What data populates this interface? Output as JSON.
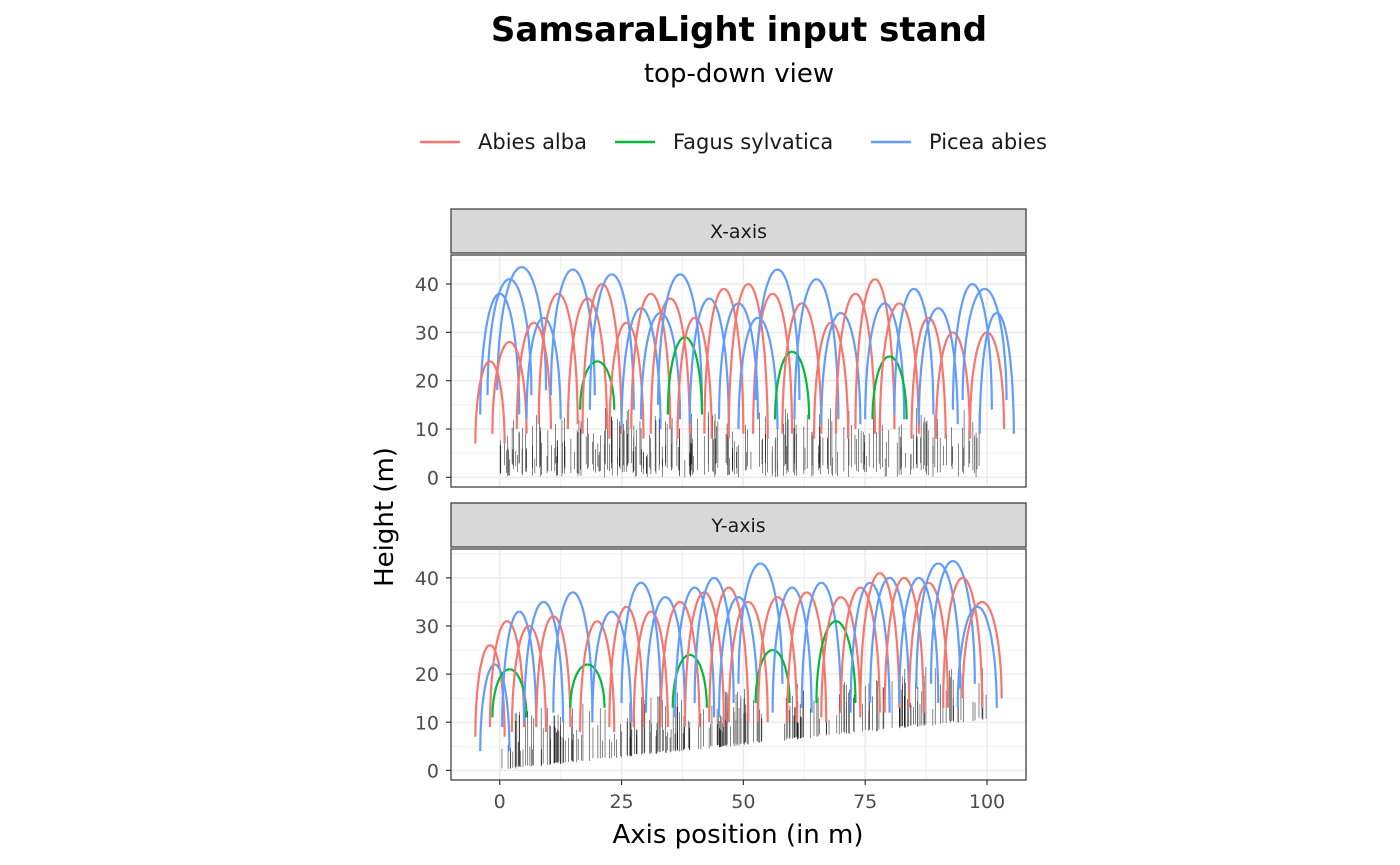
{
  "chart_data": {
    "type": "line",
    "title": "SamsaraLight input stand",
    "subtitle": "top-down view",
    "xlabel": "Axis position (in m)",
    "ylabel": "Height (m)",
    "xlim": [
      -10,
      108
    ],
    "ylim": [
      -2,
      46
    ],
    "x_ticks": [
      0,
      25,
      50,
      75,
      100
    ],
    "y_ticks": [
      0,
      10,
      20,
      30,
      40
    ],
    "grid": true,
    "legend_position": "top",
    "legend": [
      {
        "name": "Abies alba",
        "color": "#F8766D"
      },
      {
        "name": "Fagus sylvatica",
        "color": "#00BA38"
      },
      {
        "name": "Picea abies",
        "color": "#619CFF"
      }
    ],
    "panels": [
      {
        "strip": "X-axis",
        "trees": [
          {
            "species": "Picea abies",
            "x": 2,
            "base": 17,
            "height": 41,
            "radius": 4.5
          },
          {
            "species": "Picea abies",
            "x": 4.5,
            "base": 18,
            "height": 43.5,
            "radius": 5
          },
          {
            "species": "Picea abies",
            "x": 0,
            "base": 13,
            "height": 38,
            "radius": 4
          },
          {
            "species": "Abies alba",
            "x": -2,
            "base": 7,
            "height": 24,
            "radius": 3
          },
          {
            "species": "Abies alba",
            "x": 2,
            "base": 9,
            "height": 28,
            "radius": 3.5
          },
          {
            "species": "Abies alba",
            "x": 7,
            "base": 10,
            "height": 32,
            "radius": 3.5
          },
          {
            "species": "Picea abies",
            "x": 9,
            "base": 12,
            "height": 33,
            "radius": 3.5
          },
          {
            "species": "Abies alba",
            "x": 12,
            "base": 11,
            "height": 38,
            "radius": 4
          },
          {
            "species": "Picea abies",
            "x": 15,
            "base": 17,
            "height": 43,
            "radius": 4.5
          },
          {
            "species": "Abies alba",
            "x": 18,
            "base": 10,
            "height": 37,
            "radius": 4
          },
          {
            "species": "Fagus sylvatica",
            "x": 20,
            "base": 14,
            "height": 24,
            "radius": 3.5
          },
          {
            "species": "Abies alba",
            "x": 21,
            "base": 9,
            "height": 40,
            "radius": 4
          },
          {
            "species": "Picea abies",
            "x": 23,
            "base": 14,
            "height": 42,
            "radius": 4.5
          },
          {
            "species": "Abies alba",
            "x": 26,
            "base": 8,
            "height": 32,
            "radius": 3.5
          },
          {
            "species": "Picea abies",
            "x": 29,
            "base": 10,
            "height": 35,
            "radius": 4
          },
          {
            "species": "Abies alba",
            "x": 31,
            "base": 10,
            "height": 38,
            "radius": 4
          },
          {
            "species": "Picea abies",
            "x": 33,
            "base": 12,
            "height": 34,
            "radius": 4
          },
          {
            "species": "Abies alba",
            "x": 35,
            "base": 9,
            "height": 37,
            "radius": 4
          },
          {
            "species": "Picea abies",
            "x": 37,
            "base": 15,
            "height": 42,
            "radius": 4.5
          },
          {
            "species": "Fagus sylvatica",
            "x": 38,
            "base": 13,
            "height": 29,
            "radius": 3.5
          },
          {
            "species": "Abies alba",
            "x": 40,
            "base": 8,
            "height": 33,
            "radius": 3.5
          },
          {
            "species": "Picea abies",
            "x": 43,
            "base": 11,
            "height": 37,
            "radius": 4
          },
          {
            "species": "Abies alba",
            "x": 46,
            "base": 9,
            "height": 39,
            "radius": 4
          },
          {
            "species": "Picea abies",
            "x": 49,
            "base": 12,
            "height": 36,
            "radius": 4
          },
          {
            "species": "Abies alba",
            "x": 51,
            "base": 8,
            "height": 40,
            "radius": 4
          },
          {
            "species": "Picea abies",
            "x": 53,
            "base": 10,
            "height": 33,
            "radius": 4
          },
          {
            "species": "Abies alba",
            "x": 56,
            "base": 9,
            "height": 38,
            "radius": 4
          },
          {
            "species": "Picea abies",
            "x": 57,
            "base": 16,
            "height": 43,
            "radius": 4.5
          },
          {
            "species": "Fagus sylvatica",
            "x": 60,
            "base": 12,
            "height": 26,
            "radius": 3.5
          },
          {
            "species": "Abies alba",
            "x": 62,
            "base": 9,
            "height": 36,
            "radius": 4
          },
          {
            "species": "Picea abies",
            "x": 65,
            "base": 12,
            "height": 41,
            "radius": 4.5
          },
          {
            "species": "Abies alba",
            "x": 68,
            "base": 8,
            "height": 32,
            "radius": 3.5
          },
          {
            "species": "Picea abies",
            "x": 70,
            "base": 11,
            "height": 34,
            "radius": 4
          },
          {
            "species": "Abies alba",
            "x": 73,
            "base": 9,
            "height": 38,
            "radius": 4
          },
          {
            "species": "Abies alba",
            "x": 77,
            "base": 10,
            "height": 41,
            "radius": 4
          },
          {
            "species": "Picea abies",
            "x": 79,
            "base": 12,
            "height": 36,
            "radius": 4
          },
          {
            "species": "Fagus sylvatica",
            "x": 80,
            "base": 12,
            "height": 25,
            "radius": 3.5
          },
          {
            "species": "Abies alba",
            "x": 82,
            "base": 9,
            "height": 36,
            "radius": 4
          },
          {
            "species": "Picea abies",
            "x": 85,
            "base": 13,
            "height": 39,
            "radius": 4
          },
          {
            "species": "Abies alba",
            "x": 88,
            "base": 8,
            "height": 33,
            "radius": 3.5
          },
          {
            "species": "Picea abies",
            "x": 90,
            "base": 11,
            "height": 35,
            "radius": 4
          },
          {
            "species": "Abies alba",
            "x": 93,
            "base": 8,
            "height": 30,
            "radius": 3.5
          },
          {
            "species": "Picea abies",
            "x": 97,
            "base": 14,
            "height": 40,
            "radius": 4
          },
          {
            "species": "Picea abies",
            "x": 99.5,
            "base": 16,
            "height": 39,
            "radius": 4.5
          },
          {
            "species": "Abies alba",
            "x": 100,
            "base": 10,
            "height": 30,
            "radius": 3.5
          },
          {
            "species": "Picea abies",
            "x": 102,
            "base": 9,
            "height": 34,
            "radius": 3.5
          }
        ]
      },
      {
        "strip": "Y-axis",
        "trees": [
          {
            "species": "Abies alba",
            "x": -2,
            "base": 7,
            "height": 26,
            "radius": 3
          },
          {
            "species": "Picea abies",
            "x": -1,
            "base": 4,
            "height": 22,
            "radius": 3
          },
          {
            "species": "Abies alba",
            "x": 1.5,
            "base": 9,
            "height": 31,
            "radius": 3.5
          },
          {
            "species": "Fagus sylvatica",
            "x": 2,
            "base": 11,
            "height": 21,
            "radius": 3.5
          },
          {
            "species": "Picea abies",
            "x": 4,
            "base": 9,
            "height": 33,
            "radius": 3.5
          },
          {
            "species": "Abies alba",
            "x": 6,
            "base": 8,
            "height": 30,
            "radius": 3.5
          },
          {
            "species": "Picea abies",
            "x": 9,
            "base": 10,
            "height": 35,
            "radius": 4
          },
          {
            "species": "Abies alba",
            "x": 11,
            "base": 9,
            "height": 32,
            "radius": 3.5
          },
          {
            "species": "Picea abies",
            "x": 15,
            "base": 12,
            "height": 37,
            "radius": 4
          },
          {
            "species": "Fagus sylvatica",
            "x": 18,
            "base": 13,
            "height": 22,
            "radius": 3.5
          },
          {
            "species": "Abies alba",
            "x": 20,
            "base": 8,
            "height": 31,
            "radius": 3.5
          },
          {
            "species": "Picea abies",
            "x": 23,
            "base": 10,
            "height": 33,
            "radius": 4
          },
          {
            "species": "Abies alba",
            "x": 26,
            "base": 9,
            "height": 34,
            "radius": 3.5
          },
          {
            "species": "Picea abies",
            "x": 29,
            "base": 14,
            "height": 39,
            "radius": 4
          },
          {
            "species": "Abies alba",
            "x": 31,
            "base": 9,
            "height": 33,
            "radius": 3.5
          },
          {
            "species": "Picea abies",
            "x": 34,
            "base": 12,
            "height": 36,
            "radius": 4
          },
          {
            "species": "Abies alba",
            "x": 37,
            "base": 9,
            "height": 35,
            "radius": 4
          },
          {
            "species": "Fagus sylvatica",
            "x": 39,
            "base": 13,
            "height": 24,
            "radius": 3.5
          },
          {
            "species": "Picea abies",
            "x": 40,
            "base": 11,
            "height": 38,
            "radius": 4
          },
          {
            "species": "Abies alba",
            "x": 42,
            "base": 9,
            "height": 37,
            "radius": 4
          },
          {
            "species": "Picea abies",
            "x": 44,
            "base": 14,
            "height": 40,
            "radius": 4
          },
          {
            "species": "Abies alba",
            "x": 47,
            "base": 10,
            "height": 38,
            "radius": 4
          },
          {
            "species": "Picea abies",
            "x": 49,
            "base": 11,
            "height": 36,
            "radius": 4
          },
          {
            "species": "Abies alba",
            "x": 51,
            "base": 10,
            "height": 35,
            "radius": 4
          },
          {
            "species": "Picea abies",
            "x": 53.5,
            "base": 18,
            "height": 43,
            "radius": 4.5
          },
          {
            "species": "Fagus sylvatica",
            "x": 56,
            "base": 14,
            "height": 25,
            "radius": 3.5
          },
          {
            "species": "Abies alba",
            "x": 57,
            "base": 10,
            "height": 36,
            "radius": 4
          },
          {
            "species": "Picea abies",
            "x": 60,
            "base": 12,
            "height": 38,
            "radius": 4
          },
          {
            "species": "Abies alba",
            "x": 63,
            "base": 10,
            "height": 37,
            "radius": 4
          },
          {
            "species": "Picea abies",
            "x": 66,
            "base": 13,
            "height": 39,
            "radius": 4
          },
          {
            "species": "Fagus sylvatica",
            "x": 69,
            "base": 14,
            "height": 31,
            "radius": 4
          },
          {
            "species": "Abies alba",
            "x": 70,
            "base": 11,
            "height": 36,
            "radius": 4
          },
          {
            "species": "Abies alba",
            "x": 74,
            "base": 12,
            "height": 38,
            "radius": 4
          },
          {
            "species": "Picea abies",
            "x": 76,
            "base": 12,
            "height": 39,
            "radius": 4
          },
          {
            "species": "Abies alba",
            "x": 78,
            "base": 13,
            "height": 41,
            "radius": 4
          },
          {
            "species": "Picea abies",
            "x": 80,
            "base": 14,
            "height": 40,
            "radius": 4
          },
          {
            "species": "Abies alba",
            "x": 83,
            "base": 12,
            "height": 40,
            "radius": 4
          },
          {
            "species": "Picea abies",
            "x": 86,
            "base": 14,
            "height": 40,
            "radius": 4
          },
          {
            "species": "Abies alba",
            "x": 88,
            "base": 13,
            "height": 39,
            "radius": 4
          },
          {
            "species": "Picea abies",
            "x": 90,
            "base": 17,
            "height": 43,
            "radius": 4.5
          },
          {
            "species": "Picea abies",
            "x": 93,
            "base": 18,
            "height": 43.5,
            "radius": 4.5
          },
          {
            "species": "Abies alba",
            "x": 95,
            "base": 13,
            "height": 40,
            "radius": 4
          },
          {
            "species": "Abies alba",
            "x": 99,
            "base": 15,
            "height": 35,
            "radius": 4
          },
          {
            "species": "Picea abies",
            "x": 98,
            "base": 13,
            "height": 34,
            "radius": 4
          }
        ]
      }
    ]
  }
}
